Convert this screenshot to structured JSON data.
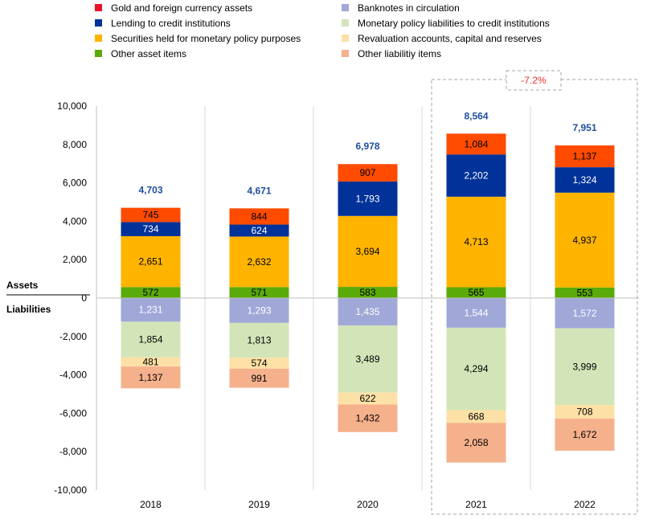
{
  "chart_data": {
    "type": "bar",
    "stacked": true,
    "categories": [
      "2018",
      "2019",
      "2020",
      "2021",
      "2022"
    ],
    "ylim": [
      -10000,
      10000
    ],
    "yticks": [
      10000,
      8000,
      6000,
      4000,
      2000,
      0,
      -2000,
      -4000,
      -6000,
      -8000,
      -10000
    ],
    "ytick_labels": [
      "10,000",
      "8,000",
      "6,000",
      "4,000",
      "2,000",
      "0",
      "-2,000",
      "-4,000",
      "-6,000",
      "-8,000",
      "-10,000"
    ],
    "assets_label": "Assets",
    "liabilities_label": "Liabilities",
    "legend_placement": "top",
    "grid": "vertical",
    "asset_series": [
      {
        "name": "Other asset items",
        "color": "#5aaa0a",
        "values": [
          572,
          571,
          583,
          565,
          553
        ],
        "labels": [
          "572",
          "571",
          "583",
          "565",
          "553"
        ]
      },
      {
        "name": "Securities held for monetary policy purposes",
        "color": "#ffb400",
        "values": [
          2651,
          2632,
          3694,
          4713,
          4937
        ],
        "labels": [
          "2,651",
          "2,632",
          "3,694",
          "4,713",
          "4,937"
        ]
      },
      {
        "name": "Lending to credit institutions",
        "color": "#003299",
        "values": [
          734,
          624,
          1793,
          2202,
          1324
        ],
        "labels": [
          "734",
          "624",
          "1,793",
          "2,202",
          "1,324"
        ]
      },
      {
        "name": "Gold and foreign currency assets",
        "color": "#ff4b00",
        "values": [
          745,
          844,
          907,
          1084,
          1137
        ],
        "labels": [
          "745",
          "844",
          "907",
          "1,084",
          "1,137"
        ]
      }
    ],
    "liability_series": [
      {
        "name": "Banknotes in circulation",
        "color": "#a0a8d8",
        "values": [
          -1231,
          -1293,
          -1435,
          -1544,
          -1572
        ],
        "labels": [
          "1,231",
          "1,293",
          "1,435",
          "1,544",
          "1,572"
        ]
      },
      {
        "name": "Monetary policy liabilities to credit institutions",
        "color": "#d3e5b8",
        "values": [
          -1854,
          -1813,
          -3489,
          -4294,
          -3999
        ],
        "labels": [
          "1,854",
          "1,813",
          "3,489",
          "4,294",
          "3,999"
        ]
      },
      {
        "name": "Revaluation accounts, capital and reserves",
        "color": "#fde0a5",
        "values": [
          -481,
          -574,
          -622,
          -668,
          -708
        ],
        "labels": [
          "481",
          "574",
          "622",
          "668",
          "708"
        ]
      },
      {
        "name": "Other liabilitiy items",
        "color": "#f5b08c",
        "values": [
          -1137,
          -991,
          -1432,
          -2058,
          -1672
        ],
        "labels": [
          "1,137",
          "991",
          "1,432",
          "2,058",
          "1,672"
        ]
      }
    ],
    "totals": [
      4703,
      4671,
      6978,
      8564,
      7951
    ],
    "total_labels": [
      "4,703",
      "4,671",
      "6,978",
      "8,564",
      "7,951"
    ],
    "annotation": {
      "text": "-7.2%",
      "color": "#e8322f",
      "categories": [
        "2021",
        "2022"
      ]
    },
    "legend": [
      {
        "name": "Gold and foreign currency assets",
        "color": "#e8102a"
      },
      {
        "name": "Lending to credit institutions",
        "color": "#003299"
      },
      {
        "name": "Securities held for monetary policy purposes",
        "color": "#ffb400"
      },
      {
        "name": "Other asset items",
        "color": "#5aaa0a"
      },
      {
        "name": "Banknotes in circulation",
        "color": "#a0a8d8"
      },
      {
        "name": "Monetary policy liabilities to credit institutions",
        "color": "#d3e5b8"
      },
      {
        "name": "Revaluation accounts, capital and reserves",
        "color": "#fde0a5"
      },
      {
        "name": "Other liabilitiy items",
        "color": "#f5b08c"
      }
    ]
  }
}
